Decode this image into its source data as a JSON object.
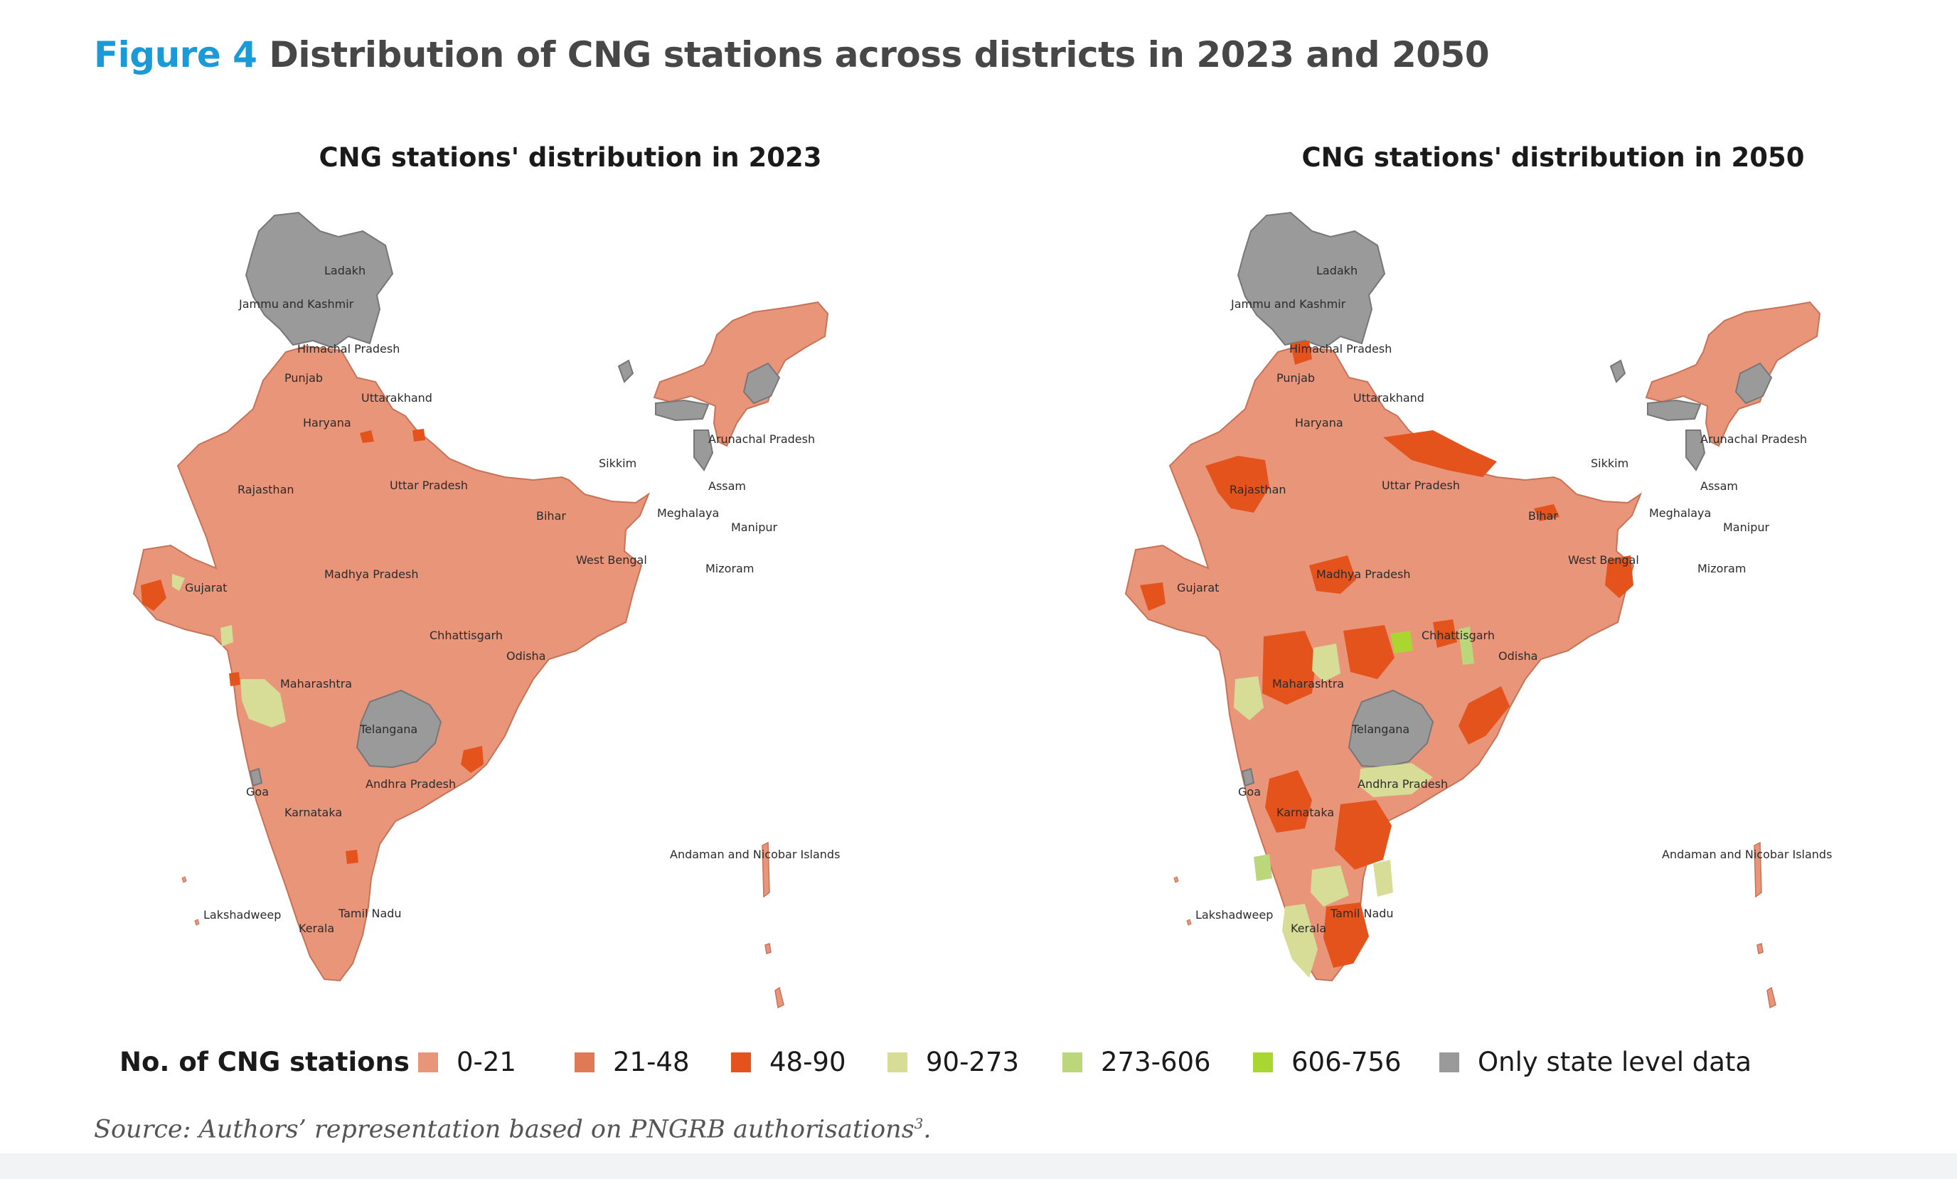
{
  "figure": {
    "number": "Figure 4",
    "title": "Distribution of CNG stations across districts in 2023 and 2050"
  },
  "maps": [
    {
      "id": "2023",
      "title": "CNG stations' distribution in 2023",
      "labels": {
        "ladakh": "Ladakh",
        "jk": "Jammu and Kashmir",
        "hp": "Himachal Pradesh",
        "punjab": "Punjab",
        "uttarakhand": "Uttarakhand",
        "haryana": "Haryana",
        "up": "Uttar Pradesh",
        "rajasthan": "Rajasthan",
        "sikkim": "Sikkim",
        "arunachal": "Arunachal Pradesh",
        "assam": "Assam",
        "meghalaya": "Meghalaya",
        "manipur": "Manipur",
        "mizoram": "Mizoram",
        "bihar": "Bihar",
        "wb": "West Bengal",
        "mp": "Madhya Pradesh",
        "gujarat": "Gujarat",
        "chhattisgarh": "Chhattisgarh",
        "odisha": "Odisha",
        "maharashtra": "Maharashtra",
        "telangana": "Telangana",
        "ap": "Andhra Pradesh",
        "goa": "Goa",
        "karnataka": "Karnataka",
        "andaman": "Andaman and Nicobar Islands",
        "lakshadweep": "Lakshadweep",
        "tn": "Tamil Nadu",
        "kerala": "Kerala"
      }
    },
    {
      "id": "2050",
      "title": "CNG stations' distribution in 2050",
      "labels": {
        "ladakh": "Ladakh",
        "jk": "Jammu and Kashmir",
        "hp": "Himachal Pradesh",
        "punjab": "Punjab",
        "uttarakhand": "Uttarakhand",
        "haryana": "Haryana",
        "up": "Uttar Pradesh",
        "rajasthan": "Rajasthan",
        "sikkim": "Sikkim",
        "arunachal": "Arunachal Pradesh",
        "assam": "Assam",
        "meghalaya": "Meghalaya",
        "manipur": "Manipur",
        "mizoram": "Mizoram",
        "bihar": "Bihar",
        "wb": "West Bengal",
        "mp": "Madhya Pradesh",
        "gujarat": "Gujarat",
        "chhattisgarh": "Chhattisgarh",
        "odisha": "Odisha",
        "maharashtra": "Maharashtra",
        "telangana": "Telangana",
        "ap": "Andhra Pradesh",
        "goa": "Goa",
        "karnataka": "Karnataka",
        "andaman": "Andaman and Nicobar Islands",
        "lakshadweep": "Lakshadweep",
        "tn": "Tamil Nadu",
        "kerala": "Kerala"
      }
    }
  ],
  "legend": {
    "title": "No. of CNG stations",
    "items": [
      {
        "label": "0-21",
        "color": "#e8957a"
      },
      {
        "label": "21-48",
        "color": "#e07a56"
      },
      {
        "label": "48-90",
        "color": "#e4531c"
      },
      {
        "label": "90-273",
        "color": "#d7dd96"
      },
      {
        "label": "273-606",
        "color": "#bcd67b"
      },
      {
        "label": "606-756",
        "color": "#a9d630"
      },
      {
        "label": "Only state level data",
        "color": "#9a9a9a"
      }
    ]
  },
  "colors": {
    "base": "#e8957a",
    "border": "#c77358",
    "no_data": "#9a9a9a"
  },
  "source": {
    "text": "Source: Authors’ representation based on PNGRB authorisations",
    "superscript": "3",
    "suffix": "."
  }
}
